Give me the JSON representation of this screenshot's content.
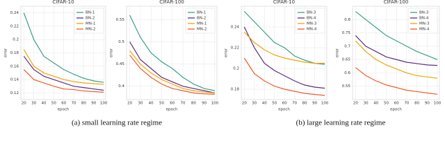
{
  "chart_data": [
    {
      "type": "line",
      "title": "CIFAR-10",
      "x_label": "epoch",
      "y_label": "error",
      "x": [
        20,
        30,
        40,
        50,
        60,
        70,
        80,
        90,
        100
      ],
      "xlim": [
        17,
        102
      ],
      "xticks": [
        20,
        30,
        40,
        50,
        60,
        70,
        80,
        90,
        100
      ],
      "ylim": [
        0.11,
        0.25
      ],
      "yticks": [
        0.12,
        0.14,
        0.16,
        0.18,
        0.2,
        0.22,
        0.24
      ],
      "grid": true,
      "legend": "upper right",
      "series": [
        {
          "name": "BN-1",
          "color": "#3a9e8a",
          "values": [
            0.24,
            0.2,
            0.175,
            0.165,
            0.155,
            0.148,
            0.142,
            0.138,
            0.136
          ]
        },
        {
          "name": "BN-2",
          "color": "#5b2c83",
          "values": [
            0.175,
            0.155,
            0.145,
            0.14,
            0.135,
            0.13,
            0.128,
            0.126,
            0.124
          ]
        },
        {
          "name": "MN-1",
          "color": "#f0a500",
          "values": [
            0.185,
            0.16,
            0.15,
            0.145,
            0.14,
            0.137,
            0.135,
            0.134,
            0.133
          ]
        },
        {
          "name": "MN-2",
          "color": "#f05a28",
          "values": [
            0.155,
            0.14,
            0.135,
            0.13,
            0.126,
            0.125,
            0.123,
            0.122,
            0.121
          ]
        }
      ]
    },
    {
      "type": "line",
      "title": "CIFAR-100",
      "x_label": "epoch",
      "y_label": "error",
      "x": [
        20,
        30,
        40,
        50,
        60,
        70,
        80,
        90,
        100
      ],
      "xlim": [
        17,
        102
      ],
      "xticks": [
        20,
        30,
        40,
        50,
        60,
        70,
        80,
        90,
        100
      ],
      "ylim": [
        0.37,
        0.58
      ],
      "yticks": [
        0.4,
        0.45,
        0.5,
        0.55
      ],
      "grid": true,
      "legend": "upper right",
      "series": [
        {
          "name": "BN-1",
          "color": "#3a9e8a",
          "values": [
            0.56,
            0.51,
            0.475,
            0.455,
            0.44,
            0.42,
            0.405,
            0.395,
            0.39
          ]
        },
        {
          "name": "BN-2",
          "color": "#5b2c83",
          "values": [
            0.5,
            0.46,
            0.44,
            0.42,
            0.41,
            0.4,
            0.395,
            0.39,
            0.385
          ]
        },
        {
          "name": "MN-1",
          "color": "#f0a500",
          "values": [
            0.48,
            0.45,
            0.43,
            0.415,
            0.405,
            0.395,
            0.39,
            0.387,
            0.385
          ]
        },
        {
          "name": "MN-2",
          "color": "#f05a28",
          "values": [
            0.47,
            0.44,
            0.42,
            0.405,
            0.395,
            0.39,
            0.385,
            0.383,
            0.382
          ]
        }
      ]
    },
    {
      "type": "line",
      "title": "CIFAR-10",
      "x_label": "epoch",
      "y_label": "error",
      "x": [
        20,
        30,
        40,
        50,
        60,
        70,
        80,
        90,
        100
      ],
      "xlim": [
        17,
        102
      ],
      "xticks": [
        20,
        30,
        40,
        50,
        60,
        70,
        80,
        90,
        100
      ],
      "ylim": [
        0.17,
        0.26
      ],
      "yticks": [
        0.18,
        0.2,
        0.22,
        0.24
      ],
      "grid": true,
      "legend": "upper right",
      "series": [
        {
          "name": "BN-3",
          "color": "#3a9e8a",
          "values": [
            0.255,
            0.245,
            0.235,
            0.225,
            0.22,
            0.212,
            0.208,
            0.205,
            0.204
          ]
        },
        {
          "name": "BN-4",
          "color": "#5b2c83",
          "values": [
            0.24,
            0.22,
            0.205,
            0.198,
            0.193,
            0.188,
            0.184,
            0.182,
            0.181
          ]
        },
        {
          "name": "MN-3",
          "color": "#f0a500",
          "values": [
            0.235,
            0.225,
            0.218,
            0.213,
            0.21,
            0.208,
            0.206,
            0.205,
            0.205
          ]
        },
        {
          "name": "MN-4",
          "color": "#f05a28",
          "values": [
            0.21,
            0.195,
            0.188,
            0.183,
            0.18,
            0.178,
            0.176,
            0.175,
            0.174
          ]
        }
      ]
    },
    {
      "type": "line",
      "title": "CIFAR-100",
      "x_label": "epoch",
      "y_label": "error",
      "x": [
        20,
        30,
        40,
        50,
        60,
        70,
        80,
        90,
        100
      ],
      "xlim": [
        17,
        102
      ],
      "xticks": [
        20,
        30,
        40,
        50,
        60,
        70,
        80,
        90,
        100
      ],
      "ylim": [
        0.5,
        0.85
      ],
      "yticks": [
        0.55,
        0.6,
        0.65,
        0.7,
        0.75,
        0.8
      ],
      "grid": true,
      "legend": "upper right",
      "series": [
        {
          "name": "BN-3",
          "color": "#3a9e8a",
          "values": [
            0.83,
            0.8,
            0.77,
            0.74,
            0.72,
            0.7,
            0.68,
            0.665,
            0.65
          ]
        },
        {
          "name": "BN-4",
          "color": "#5b2c83",
          "values": [
            0.74,
            0.7,
            0.68,
            0.66,
            0.65,
            0.64,
            0.635,
            0.63,
            0.628
          ]
        },
        {
          "name": "MN-3",
          "color": "#f0a500",
          "values": [
            0.72,
            0.68,
            0.65,
            0.63,
            0.615,
            0.6,
            0.59,
            0.585,
            0.58
          ]
        },
        {
          "name": "MN-4",
          "color": "#f05a28",
          "values": [
            0.62,
            0.59,
            0.57,
            0.555,
            0.545,
            0.535,
            0.53,
            0.525,
            0.52
          ]
        }
      ]
    }
  ],
  "captions": [
    "(a) small learning rate regime",
    "(b) large learning rate regime"
  ]
}
